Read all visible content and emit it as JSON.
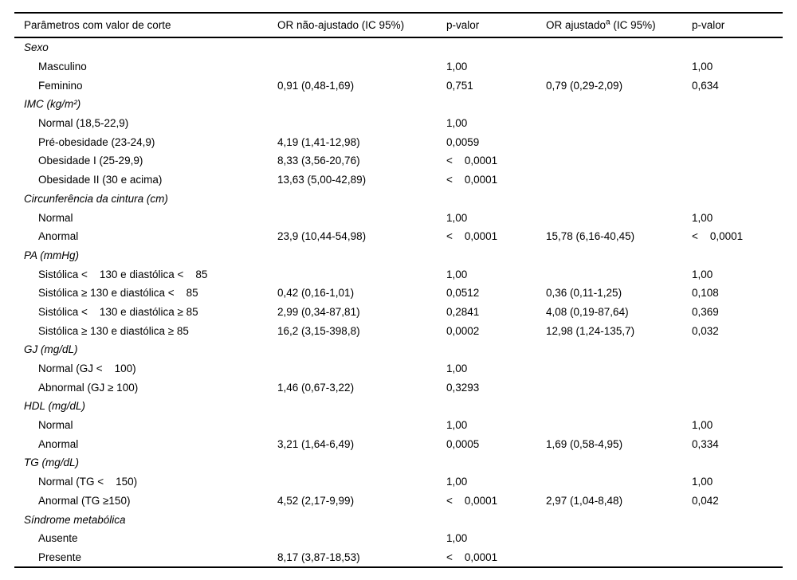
{
  "table": {
    "headers": [
      {
        "text": "Parâmetros com valor de corte"
      },
      {
        "text": "OR não-ajustado (IC 95%)"
      },
      {
        "text": "p-valor"
      },
      {
        "text1": "OR ajustado",
        "sup": "a",
        "text2": " (IC 95%)"
      },
      {
        "text": "p-valor"
      }
    ],
    "sections": [
      {
        "title": "Sexo",
        "rows": [
          {
            "label": "Masculino",
            "or_unadjusted": "",
            "p_unadjusted": "1,00",
            "or_adjusted": "",
            "p_adjusted": "1,00"
          },
          {
            "label": "Feminino",
            "or_unadjusted": "0,91 (0,48-1,69)",
            "p_unadjusted": "0,751",
            "or_adjusted": "0,79 (0,29-2,09)",
            "p_adjusted": "0,634"
          }
        ]
      },
      {
        "title": "IMC (kg/m²)",
        "rows": [
          {
            "label": "Normal (18,5-22,9)",
            "or_unadjusted": "",
            "p_unadjusted": "1,00",
            "or_adjusted": "",
            "p_adjusted": ""
          },
          {
            "label": "Pré-obesidade (23-24,9)",
            "or_unadjusted": "4,19 (1,41-12,98)",
            "p_unadjusted": "0,0059",
            "or_adjusted": "",
            "p_adjusted": ""
          },
          {
            "label": "Obesidade I (25-29,9)",
            "or_unadjusted": "8,33 (3,56-20,76)",
            "p_unadjusted": "<    0,0001",
            "or_adjusted": "",
            "p_adjusted": ""
          },
          {
            "label": "Obesidade II (30 e acima)",
            "or_unadjusted": "13,63 (5,00-42,89)",
            "p_unadjusted": "<    0,0001",
            "or_adjusted": "",
            "p_adjusted": ""
          }
        ]
      },
      {
        "title": "Circunferência da cintura (cm)",
        "rows": [
          {
            "label": "Normal",
            "or_unadjusted": "",
            "p_unadjusted": "1,00",
            "or_adjusted": "",
            "p_adjusted": "1,00"
          },
          {
            "label": "Anormal",
            "or_unadjusted": "23,9 (10,44-54,98)",
            "p_unadjusted": "<    0,0001",
            "or_adjusted": "15,78 (6,16-40,45)",
            "p_adjusted": "<    0,0001"
          }
        ]
      },
      {
        "title": "PA (mmHg)",
        "rows": [
          {
            "label": "Sistólica <    130 e diastólica <    85",
            "or_unadjusted": "",
            "p_unadjusted": "1,00",
            "or_adjusted": "",
            "p_adjusted": "1,00"
          },
          {
            "label": "Sistólica ≥ 130 e diastólica <    85",
            "or_unadjusted": "0,42 (0,16-1,01)",
            "p_unadjusted": "0,0512",
            "or_adjusted": "0,36 (0,11-1,25)",
            "p_adjusted": "0,108"
          },
          {
            "label": "Sistólica <    130 e diastólica ≥ 85",
            "or_unadjusted": "2,99 (0,34-87,81)",
            "p_unadjusted": "0,2841",
            "or_adjusted": "4,08 (0,19-87,64)",
            "p_adjusted": "0,369"
          },
          {
            "label": "Sistólica ≥ 130 e diastólica ≥ 85",
            "or_unadjusted": "16,2 (3,15-398,8)",
            "p_unadjusted": "0,0002",
            "or_adjusted": "12,98 (1,24-135,7)",
            "p_adjusted": "0,032"
          }
        ]
      },
      {
        "title": "GJ (mg/dL)",
        "rows": [
          {
            "label": "Normal (GJ <    100)",
            "or_unadjusted": "",
            "p_unadjusted": "1,00",
            "or_adjusted": "",
            "p_adjusted": ""
          },
          {
            "label": "Abnormal (GJ ≥ 100)",
            "or_unadjusted": "1,46 (0,67-3,22)",
            "p_unadjusted": "0,3293",
            "or_adjusted": "",
            "p_adjusted": ""
          }
        ]
      },
      {
        "title": "HDL (mg/dL)",
        "rows": [
          {
            "label": "Normal",
            "or_unadjusted": "",
            "p_unadjusted": "1,00",
            "or_adjusted": "",
            "p_adjusted": "1,00"
          },
          {
            "label": "Anormal",
            "or_unadjusted": "3,21 (1,64-6,49)",
            "p_unadjusted": "0,0005",
            "or_adjusted": "1,69 (0,58-4,95)",
            "p_adjusted": "0,334"
          }
        ]
      },
      {
        "title": "TG (mg/dL)",
        "rows": [
          {
            "label": "Normal (TG <    150)",
            "or_unadjusted": "",
            "p_unadjusted": "1,00",
            "or_adjusted": "",
            "p_adjusted": "1,00"
          },
          {
            "label": "Anormal (TG ≥150)",
            "or_unadjusted": "4,52 (2,17-9,99)",
            "p_unadjusted": "<    0,0001",
            "or_adjusted": "2,97 (1,04-8,48)",
            "p_adjusted": "0,042"
          }
        ]
      },
      {
        "title": "Síndrome metabólica",
        "rows": [
          {
            "label": "Ausente",
            "or_unadjusted": "",
            "p_unadjusted": "1,00",
            "or_adjusted": "",
            "p_adjusted": ""
          },
          {
            "label": "Presente",
            "or_unadjusted": "8,17 (3,87-18,53)",
            "p_unadjusted": "<    0,0001",
            "or_adjusted": "",
            "p_adjusted": ""
          }
        ]
      }
    ]
  }
}
